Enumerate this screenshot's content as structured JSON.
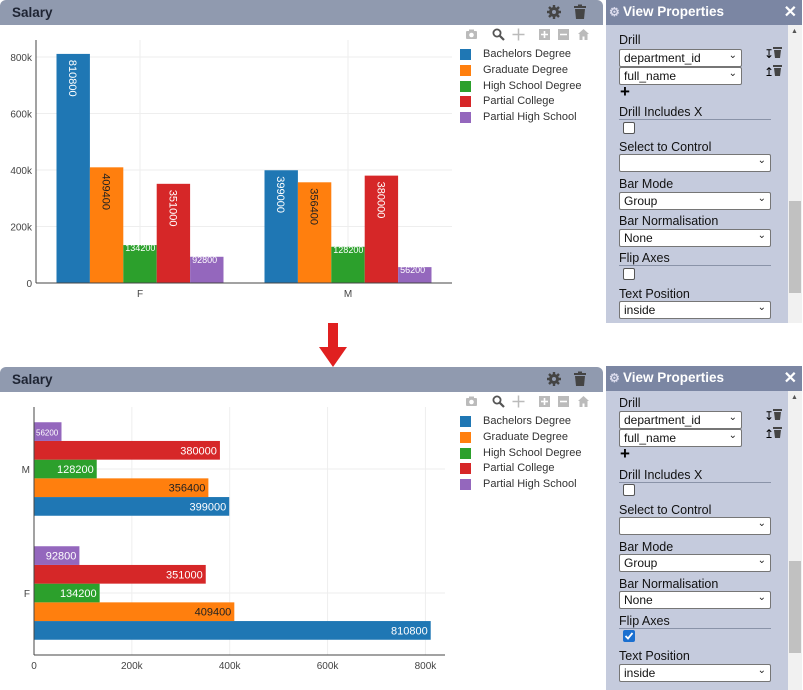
{
  "panel_title": "Salary",
  "props_title": "View Properties",
  "props": {
    "drill_label": "Drill",
    "drill_fields": [
      "department_id",
      "full_name"
    ],
    "drill_includes_x_label": "Drill Includes X",
    "select_to_control_label": "Select to Control",
    "select_to_control_value": "",
    "bar_mode_label": "Bar Mode",
    "bar_mode_value": "Group",
    "bar_norm_label": "Bar Normalisation",
    "bar_norm_value": "None",
    "flip_axes_label": "Flip Axes",
    "text_position_label": "Text Position",
    "text_position_value": "inside"
  },
  "views": [
    {
      "flip_axes": false,
      "drill_includes_x": false
    },
    {
      "flip_axes": true,
      "drill_includes_x": false
    }
  ],
  "icons": {
    "gear": "gear-icon",
    "trash": "trash-icon",
    "close": "close-icon",
    "add": "plus-icon",
    "camera": "camera-icon",
    "zoom": "zoom-icon",
    "pan": "pan-icon",
    "zoom_in": "zoom-in-icon",
    "zoom_out": "zoom-out-icon",
    "home": "home-icon",
    "arrow": "down-arrow-icon"
  },
  "colors": {
    "Bachelors Degree": "#1f77b4",
    "Graduate Degree": "#ff7f0e",
    "High School Degree": "#2ca02c",
    "Partial College": "#d62728",
    "Partial High School": "#9467bd",
    "arrow": "#e02020"
  },
  "chart_data": [
    {
      "type": "bar",
      "orientation": "vertical",
      "categories": [
        "F",
        "M"
      ],
      "series": [
        {
          "name": "Bachelors Degree",
          "values": [
            810800,
            399000
          ]
        },
        {
          "name": "Graduate Degree",
          "values": [
            409400,
            356400
          ]
        },
        {
          "name": "High School Degree",
          "values": [
            134200,
            128200
          ]
        },
        {
          "name": "Partial College",
          "values": [
            351000,
            380000
          ]
        },
        {
          "name": "Partial High School",
          "values": [
            92800,
            56200
          ]
        }
      ],
      "value_ticks": [
        "0",
        "200k",
        "400k",
        "600k",
        "800k"
      ],
      "value_range": [
        0,
        860000
      ],
      "legend_position": "top-right",
      "grid": true
    },
    {
      "type": "bar",
      "orientation": "horizontal",
      "categories": [
        "F",
        "M"
      ],
      "series": [
        {
          "name": "Bachelors Degree",
          "values": [
            810800,
            399000
          ]
        },
        {
          "name": "Graduate Degree",
          "values": [
            409400,
            356400
          ]
        },
        {
          "name": "High School Degree",
          "values": [
            134200,
            128200
          ]
        },
        {
          "name": "Partial College",
          "values": [
            351000,
            380000
          ]
        },
        {
          "name": "Partial High School",
          "values": [
            92800,
            56200
          ]
        }
      ],
      "value_ticks": [
        "0",
        "200k",
        "400k",
        "600k",
        "800k"
      ],
      "value_range": [
        0,
        840000
      ],
      "legend_position": "top-right",
      "grid": true
    }
  ]
}
